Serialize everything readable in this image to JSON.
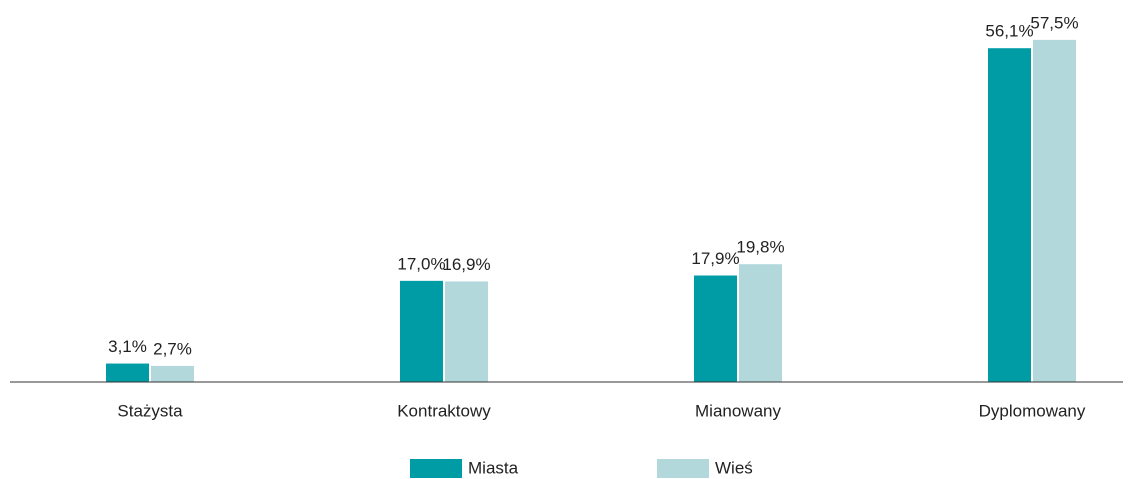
{
  "chart_data": {
    "type": "bar",
    "categories": [
      "Stażysta",
      "Kontraktowy",
      "Mianowany",
      "Dyplomowany"
    ],
    "series": [
      {
        "name": "Miasta",
        "color": "#009ca6",
        "values": [
          3.1,
          17.0,
          17.9,
          56.1
        ],
        "value_labels": [
          "3,1%",
          "17,0%",
          "17,9%",
          "56,1%"
        ]
      },
      {
        "name": "Wieś",
        "color": "#b2d8dc",
        "values": [
          2.7,
          16.9,
          19.8,
          57.5
        ],
        "value_labels": [
          "2,7%",
          "16,9%",
          "19,8%",
          "57,5%"
        ]
      }
    ],
    "legend": "bottom"
  }
}
